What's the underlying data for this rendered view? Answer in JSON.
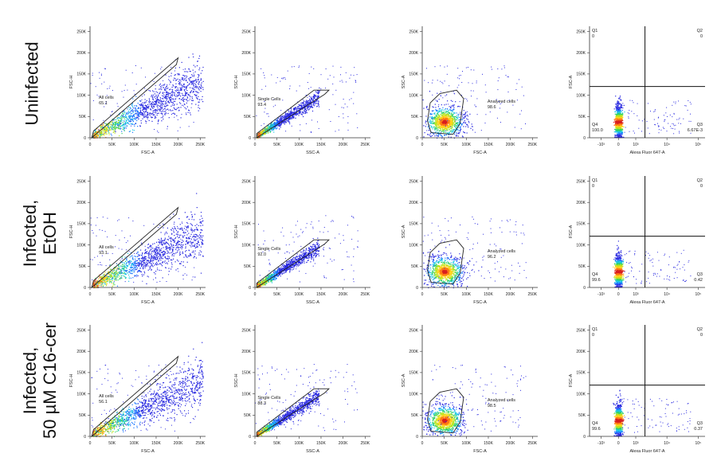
{
  "row_labels": [
    [
      "Uninfected"
    ],
    [
      "Infected,",
      "EtOH"
    ],
    [
      "Infected,",
      "50 µM C16-cer"
    ]
  ],
  "colors": {
    "density": [
      "#2a2ae0",
      "#1a78ff",
      "#19c8e6",
      "#30d16a",
      "#b8e41e",
      "#ffd21a",
      "#ff7a14",
      "#d82020"
    ],
    "gate": "#222222",
    "axis": "#333333",
    "quad_line": "#111111"
  },
  "chart_data": [
    {
      "row": 0,
      "col": 0,
      "type": "scatter",
      "plot": "FSC-A vs FSC-H",
      "xlabel": "FSC-A",
      "ylabel": "FSC-H",
      "xlim": [
        0,
        262144
      ],
      "ylim": [
        0,
        262144
      ],
      "x_ticks": [
        0,
        50000,
        100000,
        150000,
        200000,
        250000
      ],
      "x_tick_labels": [
        "0",
        "50K",
        "100K",
        "150K",
        "200K",
        "250K"
      ],
      "y_ticks": [
        0,
        50000,
        100000,
        150000,
        200000,
        250000
      ],
      "y_tick_labels": [
        "0",
        "50K",
        "100K",
        "150K",
        "200K",
        "250K"
      ],
      "gate": {
        "name": "All cells",
        "value": "65.1",
        "shape": "polygon",
        "vertices": [
          [
            4000,
            0
          ],
          [
            196000,
            172000
          ],
          [
            200000,
            188000
          ],
          [
            8000,
            16000
          ]
        ],
        "label_at": [
          20000,
          92000
        ]
      }
    },
    {
      "row": 0,
      "col": 1,
      "type": "scatter",
      "plot": "SSC-A vs SSC-H",
      "xlabel": "SSC-A",
      "ylabel": "SSC-H",
      "xlim": [
        0,
        262144
      ],
      "ylim": [
        0,
        262144
      ],
      "x_ticks": [
        0,
        50000,
        100000,
        150000,
        200000,
        250000
      ],
      "x_tick_labels": [
        "0",
        "50K",
        "100K",
        "150K",
        "200K",
        "250K"
      ],
      "y_ticks": [
        0,
        50000,
        100000,
        150000,
        200000,
        250000
      ],
      "y_tick_labels": [
        "0",
        "50K",
        "100K",
        "150K",
        "200K",
        "250K"
      ],
      "gate": {
        "name": "Single Cells",
        "value": "93.4",
        "shape": "polygon",
        "vertices": [
          [
            4000,
            0
          ],
          [
            158000,
            102000
          ],
          [
            168000,
            112000
          ],
          [
            134000,
            112000
          ],
          [
            4000,
            10000
          ]
        ],
        "label_at": [
          6000,
          88000
        ]
      }
    },
    {
      "row": 0,
      "col": 2,
      "type": "scatter",
      "plot": "FSC-A vs SSC-A",
      "xlabel": "FSC-A",
      "ylabel": "SSC-A",
      "xlim": [
        0,
        262144
      ],
      "ylim": [
        0,
        262144
      ],
      "x_ticks": [
        0,
        50000,
        100000,
        150000,
        200000,
        250000
      ],
      "x_tick_labels": [
        "0",
        "50K",
        "100K",
        "150K",
        "200K",
        "250K"
      ],
      "y_ticks": [
        0,
        50000,
        100000,
        150000,
        200000,
        250000
      ],
      "y_tick_labels": [
        "0",
        "50K",
        "100K",
        "150K",
        "200K",
        "250K"
      ],
      "gate": {
        "name": "Analyzed cells",
        "value": "98.6",
        "shape": "polygon",
        "vertices": [
          [
            20000,
            12000
          ],
          [
            70000,
            8000
          ],
          [
            86000,
            34000
          ],
          [
            94000,
            92000
          ],
          [
            78000,
            112000
          ],
          [
            40000,
            104000
          ],
          [
            18000,
            82000
          ],
          [
            12000,
            40000
          ]
        ],
        "label_at": [
          148000,
          82000
        ]
      }
    },
    {
      "row": 0,
      "col": 3,
      "type": "quadrant",
      "plot": "Alexa Fluor 647-A vs FSC-A",
      "xlabel": "Alexa Fluor 647-A",
      "ylabel": "FSC-A",
      "xlim": [
        0,
        262144
      ],
      "ylim": [
        0,
        262144
      ],
      "x_ticks": [],
      "x_tick_labels": [
        "-10³",
        "0",
        "10³",
        "10⁴",
        "10⁵"
      ],
      "y_ticks": [
        0,
        50000,
        100000,
        150000,
        200000,
        250000
      ],
      "y_tick_labels": [
        "0",
        "50K",
        "100K",
        "150K",
        "200K",
        "250K"
      ],
      "quadrants": [
        {
          "name": "Q1",
          "value": "0"
        },
        {
          "name": "Q2",
          "value": "0"
        },
        {
          "name": "Q3",
          "value": "6.67E-3"
        },
        {
          "name": "Q4",
          "value": "100.0"
        }
      ]
    },
    {
      "row": 1,
      "col": 0,
      "type": "scatter",
      "plot": "FSC-A vs FSC-H",
      "xlabel": "FSC-A",
      "ylabel": "FSC-H",
      "xlim": [
        0,
        262144
      ],
      "ylim": [
        0,
        262144
      ],
      "x_ticks": [
        0,
        50000,
        100000,
        150000,
        200000,
        250000
      ],
      "x_tick_labels": [
        "0",
        "50K",
        "100K",
        "150K",
        "200K",
        "250K"
      ],
      "y_ticks": [
        0,
        50000,
        100000,
        150000,
        200000,
        250000
      ],
      "y_tick_labels": [
        "0",
        "50K",
        "100K",
        "150K",
        "200K",
        "250K"
      ],
      "gate": {
        "name": "All cells",
        "value": "93.1",
        "shape": "polygon",
        "vertices": [
          [
            4000,
            0
          ],
          [
            196000,
            172000
          ],
          [
            200000,
            188000
          ],
          [
            8000,
            16000
          ]
        ],
        "label_at": [
          20000,
          92000
        ]
      }
    },
    {
      "row": 1,
      "col": 1,
      "type": "scatter",
      "plot": "SSC-A vs SSC-H",
      "xlabel": "SSC-A",
      "ylabel": "SSC-H",
      "xlim": [
        0,
        262144
      ],
      "ylim": [
        0,
        262144
      ],
      "x_ticks": [
        0,
        50000,
        100000,
        150000,
        200000,
        250000
      ],
      "x_tick_labels": [
        "0",
        "50K",
        "100K",
        "150K",
        "200K",
        "250K"
      ],
      "y_ticks": [
        0,
        50000,
        100000,
        150000,
        200000,
        250000
      ],
      "y_tick_labels": [
        "0",
        "50K",
        "100K",
        "150K",
        "200K",
        "250K"
      ],
      "gate": {
        "name": "Single Cells",
        "value": "92.0",
        "shape": "polygon",
        "vertices": [
          [
            4000,
            0
          ],
          [
            158000,
            102000
          ],
          [
            168000,
            112000
          ],
          [
            134000,
            112000
          ],
          [
            4000,
            10000
          ]
        ],
        "label_at": [
          6000,
          88000
        ]
      }
    },
    {
      "row": 1,
      "col": 2,
      "type": "scatter",
      "plot": "FSC-A vs SSC-A",
      "xlabel": "FSC-A",
      "ylabel": "SSC-A",
      "xlim": [
        0,
        262144
      ],
      "ylim": [
        0,
        262144
      ],
      "x_ticks": [
        0,
        50000,
        100000,
        150000,
        200000,
        250000
      ],
      "x_tick_labels": [
        "0",
        "50K",
        "100K",
        "150K",
        "200K",
        "250K"
      ],
      "y_ticks": [
        0,
        50000,
        100000,
        150000,
        200000,
        250000
      ],
      "y_tick_labels": [
        "0",
        "50K",
        "100K",
        "150K",
        "200K",
        "250K"
      ],
      "gate": {
        "name": "Analyzed cells",
        "value": "96.2",
        "shape": "polygon",
        "vertices": [
          [
            20000,
            12000
          ],
          [
            70000,
            8000
          ],
          [
            86000,
            34000
          ],
          [
            94000,
            92000
          ],
          [
            78000,
            112000
          ],
          [
            40000,
            104000
          ],
          [
            18000,
            82000
          ],
          [
            12000,
            40000
          ]
        ],
        "label_at": [
          148000,
          82000
        ]
      }
    },
    {
      "row": 1,
      "col": 3,
      "type": "quadrant",
      "plot": "Alexa Fluor 647-A vs FSC-A",
      "xlabel": "Alexa Fluor 647-A",
      "ylabel": "FSC-A",
      "xlim": [
        0,
        262144
      ],
      "ylim": [
        0,
        262144
      ],
      "x_ticks": [],
      "x_tick_labels": [
        "-10³",
        "0",
        "10³",
        "10⁴",
        "10⁵"
      ],
      "y_ticks": [
        0,
        50000,
        100000,
        150000,
        200000,
        250000
      ],
      "y_tick_labels": [
        "0",
        "50K",
        "100K",
        "150K",
        "200K",
        "250K"
      ],
      "quadrants": [
        {
          "name": "Q1",
          "value": "0"
        },
        {
          "name": "Q2",
          "value": "0"
        },
        {
          "name": "Q3",
          "value": "0.42"
        },
        {
          "name": "Q4",
          "value": "99.6"
        }
      ]
    },
    {
      "row": 2,
      "col": 0,
      "type": "scatter",
      "plot": "FSC-A vs FSC-H",
      "xlabel": "FSC-A",
      "ylabel": "FSC-H",
      "xlim": [
        0,
        262144
      ],
      "ylim": [
        0,
        262144
      ],
      "x_ticks": [
        0,
        50000,
        100000,
        150000,
        200000,
        250000
      ],
      "x_tick_labels": [
        "0",
        "50K",
        "100K",
        "150K",
        "200K",
        "250K"
      ],
      "y_ticks": [
        0,
        50000,
        100000,
        150000,
        200000,
        250000
      ],
      "y_tick_labels": [
        "0",
        "50K",
        "100K",
        "150K",
        "200K",
        "250K"
      ],
      "gate": {
        "name": "All cells",
        "value": "56.1",
        "shape": "polygon",
        "vertices": [
          [
            4000,
            0
          ],
          [
            196000,
            172000
          ],
          [
            200000,
            188000
          ],
          [
            8000,
            16000
          ]
        ],
        "label_at": [
          20000,
          92000
        ]
      }
    },
    {
      "row": 2,
      "col": 1,
      "type": "scatter",
      "plot": "SSC-A vs SSC-H",
      "xlabel": "SSC-A",
      "ylabel": "SSC-H",
      "xlim": [
        0,
        262144
      ],
      "ylim": [
        0,
        262144
      ],
      "x_ticks": [
        0,
        50000,
        100000,
        150000,
        200000,
        250000
      ],
      "x_tick_labels": [
        "0",
        "50K",
        "100K",
        "150K",
        "200K",
        "250K"
      ],
      "y_ticks": [
        0,
        50000,
        100000,
        150000,
        200000,
        250000
      ],
      "y_tick_labels": [
        "0",
        "50K",
        "100K",
        "150K",
        "200K",
        "250K"
      ],
      "gate": {
        "name": "Single Cells",
        "value": "88.3",
        "shape": "polygon",
        "vertices": [
          [
            4000,
            0
          ],
          [
            158000,
            102000
          ],
          [
            168000,
            112000
          ],
          [
            134000,
            112000
          ],
          [
            4000,
            10000
          ]
        ],
        "label_at": [
          6000,
          88000
        ]
      }
    },
    {
      "row": 2,
      "col": 2,
      "type": "scatter",
      "plot": "FSC-A vs SSC-A",
      "xlabel": "FSC-A",
      "ylabel": "SSC-A",
      "xlim": [
        0,
        262144
      ],
      "ylim": [
        0,
        262144
      ],
      "x_ticks": [
        0,
        50000,
        100000,
        150000,
        200000,
        250000
      ],
      "x_tick_labels": [
        "0",
        "50K",
        "100K",
        "150K",
        "200K",
        "250K"
      ],
      "y_ticks": [
        0,
        50000,
        100000,
        150000,
        200000,
        250000
      ],
      "y_tick_labels": [
        "0",
        "50K",
        "100K",
        "150K",
        "200K",
        "250K"
      ],
      "gate": {
        "name": "Analyzed cells",
        "value": "98.5",
        "shape": "polygon",
        "vertices": [
          [
            20000,
            12000
          ],
          [
            70000,
            8000
          ],
          [
            86000,
            34000
          ],
          [
            94000,
            92000
          ],
          [
            78000,
            112000
          ],
          [
            40000,
            104000
          ],
          [
            18000,
            82000
          ],
          [
            12000,
            40000
          ]
        ],
        "label_at": [
          148000,
          82000
        ]
      }
    },
    {
      "row": 2,
      "col": 3,
      "type": "quadrant",
      "plot": "Alexa Fluor 647-A vs FSC-A",
      "xlabel": "Alexa Fluor 647-A",
      "ylabel": "FSC-A",
      "xlim": [
        0,
        262144
      ],
      "ylim": [
        0,
        262144
      ],
      "x_ticks": [],
      "x_tick_labels": [
        "-10³",
        "0",
        "10³",
        "10⁴",
        "10⁵"
      ],
      "y_ticks": [
        0,
        50000,
        100000,
        150000,
        200000,
        250000
      ],
      "y_tick_labels": [
        "0",
        "50K",
        "100K",
        "150K",
        "200K",
        "250K"
      ],
      "quadrants": [
        {
          "name": "Q1",
          "value": "0"
        },
        {
          "name": "Q2",
          "value": "0"
        },
        {
          "name": "Q3",
          "value": "0.37"
        },
        {
          "name": "Q4",
          "value": "99.6"
        }
      ]
    }
  ]
}
